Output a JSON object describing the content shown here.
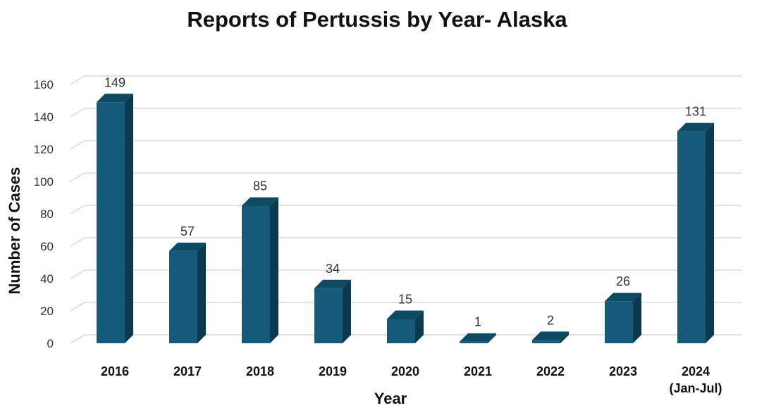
{
  "chart_data": {
    "type": "bar",
    "title": "Reports of Pertussis by Year- Alaska",
    "xlabel": "Year",
    "ylabel": "Number of Cases",
    "categories": [
      [
        "2016"
      ],
      [
        "2017"
      ],
      [
        "2018"
      ],
      [
        "2019"
      ],
      [
        "2020"
      ],
      [
        "2021"
      ],
      [
        "2022"
      ],
      [
        "2023"
      ],
      [
        "2024",
        "(Jan-Jul)"
      ]
    ],
    "values": [
      149,
      57,
      85,
      34,
      15,
      1,
      2,
      26,
      131
    ],
    "data_labels": [
      "149",
      "57",
      "85",
      "34",
      "15",
      "1",
      "2",
      "26",
      "131"
    ],
    "ylim": [
      0,
      160
    ],
    "yticks": [
      0,
      20,
      40,
      60,
      80,
      100,
      120,
      140,
      160
    ],
    "grid": true,
    "legend": "none",
    "style": "3d-column",
    "colors": {
      "bar_front": "#155a78",
      "bar_top": "#0f4a64",
      "bar_side": "#0b3a4f",
      "grid": "#d9d9d9"
    }
  }
}
